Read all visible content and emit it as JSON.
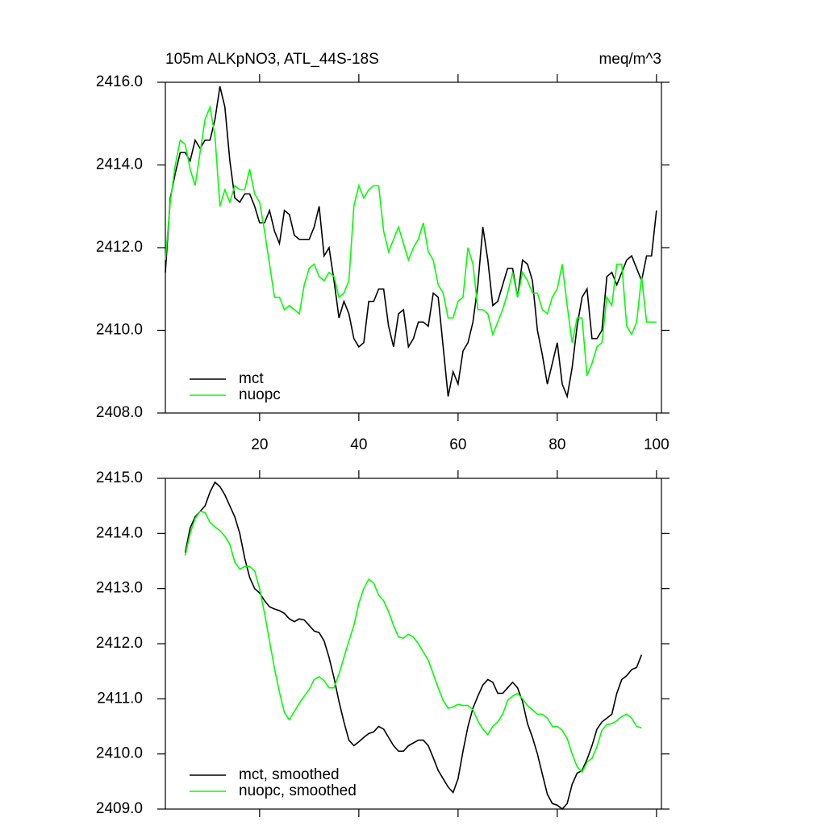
{
  "chart_data": [
    {
      "type": "line",
      "title": "105m ALKpNO3, ATL_44S-18S",
      "units": "meq/m^3",
      "x": [
        1,
        2,
        3,
        4,
        5,
        6,
        7,
        8,
        9,
        10,
        11,
        12,
        13,
        14,
        15,
        16,
        17,
        18,
        19,
        20,
        21,
        22,
        23,
        24,
        25,
        26,
        27,
        28,
        29,
        30,
        31,
        32,
        33,
        34,
        35,
        36,
        37,
        38,
        39,
        40,
        41,
        42,
        43,
        44,
        45,
        46,
        47,
        48,
        49,
        50,
        51,
        52,
        53,
        54,
        55,
        56,
        57,
        58,
        59,
        60,
        61,
        62,
        63,
        64,
        65,
        66,
        67,
        68,
        69,
        70,
        71,
        72,
        73,
        74,
        75,
        76,
        77,
        78,
        79,
        80,
        81,
        82,
        83,
        84,
        85,
        86,
        87,
        88,
        89,
        90,
        91,
        92,
        93,
        94,
        95,
        96,
        97,
        98,
        99,
        100
      ],
      "series": [
        {
          "name": "mct",
          "color": "#000000",
          "values": [
            2411.4,
            2413.2,
            2413.8,
            2414.3,
            2414.3,
            2414.1,
            2414.6,
            2414.4,
            2414.6,
            2414.6,
            2415.1,
            2415.9,
            2415.4,
            2414.1,
            2413.2,
            2413.1,
            2413.3,
            2413.3,
            2413.0,
            2412.6,
            2412.6,
            2412.9,
            2412.4,
            2412.1,
            2412.9,
            2412.8,
            2412.3,
            2412.2,
            2412.2,
            2412.2,
            2412.5,
            2413.0,
            2411.8,
            2412.0,
            2411.2,
            2410.3,
            2410.7,
            2410.4,
            2409.8,
            2409.6,
            2409.7,
            2410.7,
            2410.7,
            2411.0,
            2411.0,
            2410.1,
            2409.6,
            2410.4,
            2410.5,
            2409.6,
            2409.8,
            2410.2,
            2410.2,
            2410.1,
            2410.9,
            2410.8,
            2409.6,
            2408.4,
            2409.0,
            2408.7,
            2409.5,
            2409.7,
            2410.2,
            2411.1,
            2412.5,
            2411.7,
            2410.6,
            2410.7,
            2411.1,
            2411.5,
            2411.5,
            2410.8,
            2411.7,
            2411.6,
            2411.2,
            2410.0,
            2409.4,
            2408.7,
            2409.2,
            2409.7,
            2408.7,
            2408.4,
            2409.1,
            2410.1,
            2410.8,
            2411.0,
            2409.8,
            2409.8,
            2410.0,
            2411.3,
            2411.4,
            2411.1,
            2411.4,
            2411.7,
            2411.8,
            2411.5,
            2411.2,
            2411.8,
            2411.8,
            2412.9
          ]
        },
        {
          "name": "nuopc",
          "color": "#00ff00",
          "values": [
            2411.7,
            2413.1,
            2414.0,
            2414.6,
            2414.5,
            2413.9,
            2413.5,
            2414.3,
            2415.1,
            2415.4,
            2414.7,
            2413.0,
            2413.4,
            2413.1,
            2413.5,
            2413.4,
            2413.4,
            2413.9,
            2413.3,
            2413.1,
            2412.4,
            2411.6,
            2410.8,
            2410.8,
            2410.5,
            2410.6,
            2410.5,
            2410.4,
            2411.1,
            2411.5,
            2411.6,
            2411.3,
            2411.2,
            2411.4,
            2411.3,
            2410.8,
            2410.9,
            2411.2,
            2413.0,
            2413.5,
            2413.2,
            2413.4,
            2413.5,
            2413.5,
            2412.4,
            2411.9,
            2412.2,
            2412.5,
            2412.1,
            2411.7,
            2412.0,
            2412.2,
            2412.6,
            2411.9,
            2411.7,
            2411.1,
            2410.9,
            2410.3,
            2410.3,
            2410.7,
            2410.8,
            2412.0,
            2411.6,
            2410.5,
            2410.5,
            2410.4,
            2409.9,
            2410.2,
            2410.5,
            2410.9,
            2411.4,
            2410.8,
            2411.4,
            2411.2,
            2410.9,
            2410.9,
            2410.5,
            2410.4,
            2410.8,
            2411.0,
            2411.6,
            2410.6,
            2409.7,
            2410.3,
            2410.3,
            2408.9,
            2409.2,
            2409.6,
            2409.7,
            2410.8,
            2410.6,
            2411.6,
            2411.6,
            2410.1,
            2409.9,
            2410.2,
            2411.3,
            2410.2,
            2410.2,
            2410.2
          ]
        }
      ],
      "xlim": [
        1,
        101
      ],
      "xticks": [
        20,
        40,
        60,
        80,
        100
      ],
      "show_xtick_labels": true,
      "ylim": [
        2408,
        2416
      ],
      "yticks": [
        {
          "value": 2408,
          "label": "2408.0"
        },
        {
          "value": 2410,
          "label": "2410.0"
        },
        {
          "value": 2412,
          "label": "2412.0"
        },
        {
          "value": 2414,
          "label": "2414.0"
        },
        {
          "value": 2416,
          "label": "2416.0"
        }
      ],
      "legend": "lower left"
    },
    {
      "type": "line",
      "x": [
        5,
        6,
        7,
        8,
        9,
        10,
        11,
        12,
        13,
        14,
        15,
        16,
        17,
        18,
        19,
        20,
        21,
        22,
        23,
        24,
        25,
        26,
        27,
        28,
        29,
        30,
        31,
        32,
        33,
        34,
        35,
        36,
        37,
        38,
        39,
        40,
        41,
        42,
        43,
        44,
        45,
        46,
        47,
        48,
        49,
        50,
        51,
        52,
        53,
        54,
        55,
        56,
        57,
        58,
        59,
        60,
        61,
        62,
        63,
        64,
        65,
        66,
        67,
        68,
        69,
        70,
        71,
        72,
        73,
        74,
        75,
        76,
        77,
        78,
        79,
        80,
        81,
        82,
        83,
        84,
        85,
        86,
        87,
        88,
        89,
        90,
        91,
        92,
        93,
        94,
        95,
        96,
        97
      ],
      "series": [
        {
          "name": "mct, smoothed",
          "color": "#000000",
          "values": [
            2413.65,
            2414.1,
            2414.3,
            2414.4,
            2414.5,
            2414.75,
            2414.93,
            2414.85,
            2414.7,
            2414.5,
            2414.3,
            2414.0,
            2413.55,
            2413.2,
            2413.0,
            2412.92,
            2412.78,
            2412.67,
            2412.63,
            2412.6,
            2412.55,
            2412.45,
            2412.4,
            2412.45,
            2412.43,
            2412.33,
            2412.23,
            2412.2,
            2412.05,
            2411.75,
            2411.38,
            2410.95,
            2410.58,
            2410.25,
            2410.15,
            2410.22,
            2410.3,
            2410.37,
            2410.4,
            2410.5,
            2410.45,
            2410.3,
            2410.15,
            2410.05,
            2410.05,
            2410.15,
            2410.2,
            2410.25,
            2410.25,
            2410.15,
            2409.93,
            2409.7,
            2409.55,
            2409.4,
            2409.3,
            2409.55,
            2410.05,
            2410.5,
            2410.83,
            2411.05,
            2411.25,
            2411.35,
            2411.3,
            2411.1,
            2411.1,
            2411.2,
            2411.3,
            2411.2,
            2410.95,
            2410.55,
            2410.3,
            2410.0,
            2409.63,
            2409.27,
            2409.1,
            2409.07,
            2409.0,
            2409.1,
            2409.45,
            2409.65,
            2409.7,
            2409.9,
            2410.15,
            2410.45,
            2410.58,
            2410.65,
            2410.72,
            2411.1,
            2411.35,
            2411.42,
            2411.53,
            2411.57,
            2411.8
          ]
        },
        {
          "name": "nuopc, smoothed",
          "color": "#00ff00",
          "values": [
            2413.6,
            2414.0,
            2414.27,
            2414.4,
            2414.38,
            2414.2,
            2414.12,
            2414.05,
            2413.95,
            2413.8,
            2413.48,
            2413.35,
            2413.4,
            2413.4,
            2413.32,
            2413.0,
            2412.55,
            2412.05,
            2411.55,
            2411.12,
            2410.75,
            2410.62,
            2410.77,
            2410.92,
            2411.05,
            2411.17,
            2411.35,
            2411.4,
            2411.33,
            2411.2,
            2411.2,
            2411.45,
            2411.75,
            2412.05,
            2412.33,
            2412.73,
            2413.0,
            2413.17,
            2413.1,
            2412.88,
            2412.78,
            2412.58,
            2412.33,
            2412.12,
            2412.1,
            2412.17,
            2412.12,
            2412.0,
            2411.85,
            2411.7,
            2411.45,
            2411.2,
            2410.97,
            2410.83,
            2410.85,
            2410.9,
            2410.88,
            2410.88,
            2410.8,
            2410.6,
            2410.45,
            2410.35,
            2410.5,
            2410.58,
            2410.72,
            2410.97,
            2411.05,
            2411.1,
            2411.0,
            2410.88,
            2410.8,
            2410.72,
            2410.72,
            2410.65,
            2410.5,
            2410.5,
            2410.43,
            2410.28,
            2410.0,
            2409.77,
            2409.67,
            2409.85,
            2409.92,
            2410.13,
            2410.43,
            2410.53,
            2410.55,
            2410.6,
            2410.68,
            2410.72,
            2410.65,
            2410.5,
            2410.47
          ]
        }
      ],
      "xlim": [
        1,
        101
      ],
      "xticks": [
        20,
        40,
        60,
        80,
        100
      ],
      "show_xtick_labels": false,
      "ylim": [
        2409,
        2415
      ],
      "yticks": [
        {
          "value": 2409,
          "label": "2409.0"
        },
        {
          "value": 2410,
          "label": "2410.0"
        },
        {
          "value": 2411,
          "label": "2411.0"
        },
        {
          "value": 2412,
          "label": "2412.0"
        },
        {
          "value": 2413,
          "label": "2413.0"
        },
        {
          "value": 2414,
          "label": "2414.0"
        },
        {
          "value": 2415,
          "label": "2415.0"
        }
      ],
      "legend": "lower left"
    }
  ]
}
